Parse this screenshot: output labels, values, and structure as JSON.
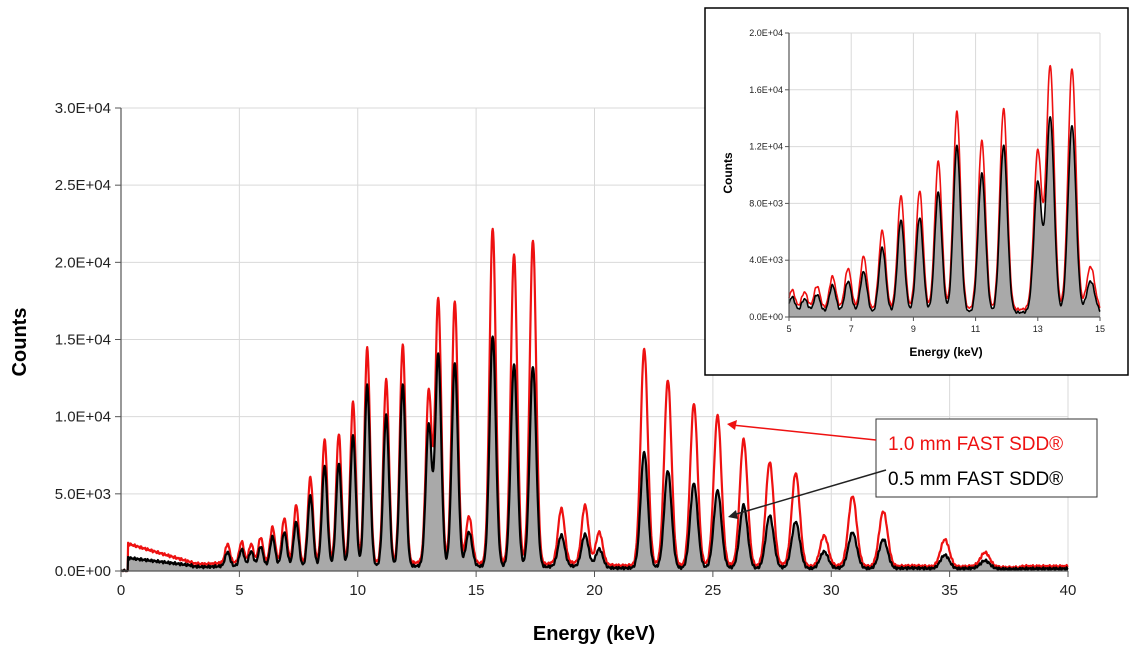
{
  "colors": {
    "red": "#ee1111",
    "black": "#000000",
    "fill": "#a9a9a9",
    "grid": "#d9d9d9"
  },
  "chart_data": [
    {
      "type": "area",
      "title": "",
      "xlabel": "Energy (keV)",
      "ylabel": "Counts",
      "xlim": [
        0,
        40
      ],
      "ylim": [
        0,
        30000
      ],
      "x_ticks": [
        "0",
        "5",
        "10",
        "15",
        "20",
        "25",
        "30",
        "35",
        "40"
      ],
      "y_ticks": [
        "0.0E+00",
        "5.0E+03",
        "1.0E+04",
        "1.5E+04",
        "2.0E+04",
        "2.5E+04",
        "3.0E+04"
      ],
      "grid": true,
      "legend": [
        {
          "label": "1.0 mm FAST SDD®",
          "color": "#ee1111"
        },
        {
          "label": "0.5 mm FAST SDD®",
          "color": "#000000"
        }
      ],
      "series": [
        {
          "name": "1.0 mm FAST SDD®",
          "color": "#ee1111",
          "peaks": [
            [
              4.5,
              1200
            ],
            [
              5.1,
              1400
            ],
            [
              5.5,
              1300
            ],
            [
              5.9,
              1700
            ],
            [
              6.4,
              2300
            ],
            [
              6.9,
              2900
            ],
            [
              7.4,
              3800
            ],
            [
              8.0,
              5600
            ],
            [
              8.6,
              8000
            ],
            [
              9.2,
              8400
            ],
            [
              9.8,
              10500
            ],
            [
              10.4,
              13900
            ],
            [
              11.2,
              11900
            ],
            [
              11.9,
              14200
            ],
            [
              13.0,
              11200
            ],
            [
              13.4,
              17200
            ],
            [
              14.1,
              17000
            ],
            [
              14.7,
              3000
            ],
            [
              15.7,
              21800
            ],
            [
              16.6,
              20000
            ],
            [
              17.4,
              21000
            ],
            [
              18.6,
              3500
            ],
            [
              19.6,
              3800
            ],
            [
              20.2,
              2100
            ],
            [
              22.1,
              14000
            ],
            [
              23.1,
              12000
            ],
            [
              24.2,
              10500
            ],
            [
              25.2,
              9700
            ],
            [
              26.3,
              8200
            ],
            [
              27.4,
              6700
            ],
            [
              28.5,
              6000
            ],
            [
              29.7,
              2000
            ],
            [
              30.9,
              4500
            ],
            [
              32.2,
              3600
            ],
            [
              34.8,
              1800
            ],
            [
              36.5,
              900
            ]
          ]
        },
        {
          "name": "0.5 mm FAST SDD®",
          "color": "#000000",
          "peaks": [
            [
              4.5,
              900
            ],
            [
              5.1,
              1100
            ],
            [
              5.5,
              1000
            ],
            [
              5.9,
              1300
            ],
            [
              6.4,
              1900
            ],
            [
              6.9,
              2200
            ],
            [
              7.4,
              2900
            ],
            [
              8.0,
              4600
            ],
            [
              8.6,
              6500
            ],
            [
              9.2,
              6700
            ],
            [
              9.8,
              8500
            ],
            [
              10.4,
              11700
            ],
            [
              11.2,
              9800
            ],
            [
              11.9,
              11800
            ],
            [
              13.0,
              9200
            ],
            [
              13.4,
              13800
            ],
            [
              14.1,
              13200
            ],
            [
              14.7,
              2200
            ],
            [
              15.7,
              15000
            ],
            [
              16.6,
              13100
            ],
            [
              17.4,
              13000
            ],
            [
              18.6,
              2000
            ],
            [
              19.6,
              2100
            ],
            [
              20.2,
              1200
            ],
            [
              22.1,
              7500
            ],
            [
              23.1,
              6300
            ],
            [
              24.2,
              5500
            ],
            [
              25.2,
              5000
            ],
            [
              26.3,
              4100
            ],
            [
              27.4,
              3400
            ],
            [
              28.5,
              3000
            ],
            [
              29.7,
              1100
            ],
            [
              30.9,
              2300
            ],
            [
              32.2,
              1900
            ],
            [
              34.8,
              900
            ],
            [
              36.5,
              500
            ]
          ]
        }
      ]
    },
    {
      "type": "area",
      "title": "",
      "xlabel": "Energy (keV)",
      "ylabel": "Counts",
      "xlim": [
        5,
        15
      ],
      "ylim": [
        0,
        20000
      ],
      "x_ticks": [
        "5",
        "7",
        "9",
        "11",
        "13",
        "15"
      ],
      "y_ticks": [
        "0.0E+00",
        "4.0E+03",
        "8.0E+03",
        "1.2E+04",
        "1.6E+04",
        "2.0E+04"
      ],
      "grid": true
    }
  ]
}
